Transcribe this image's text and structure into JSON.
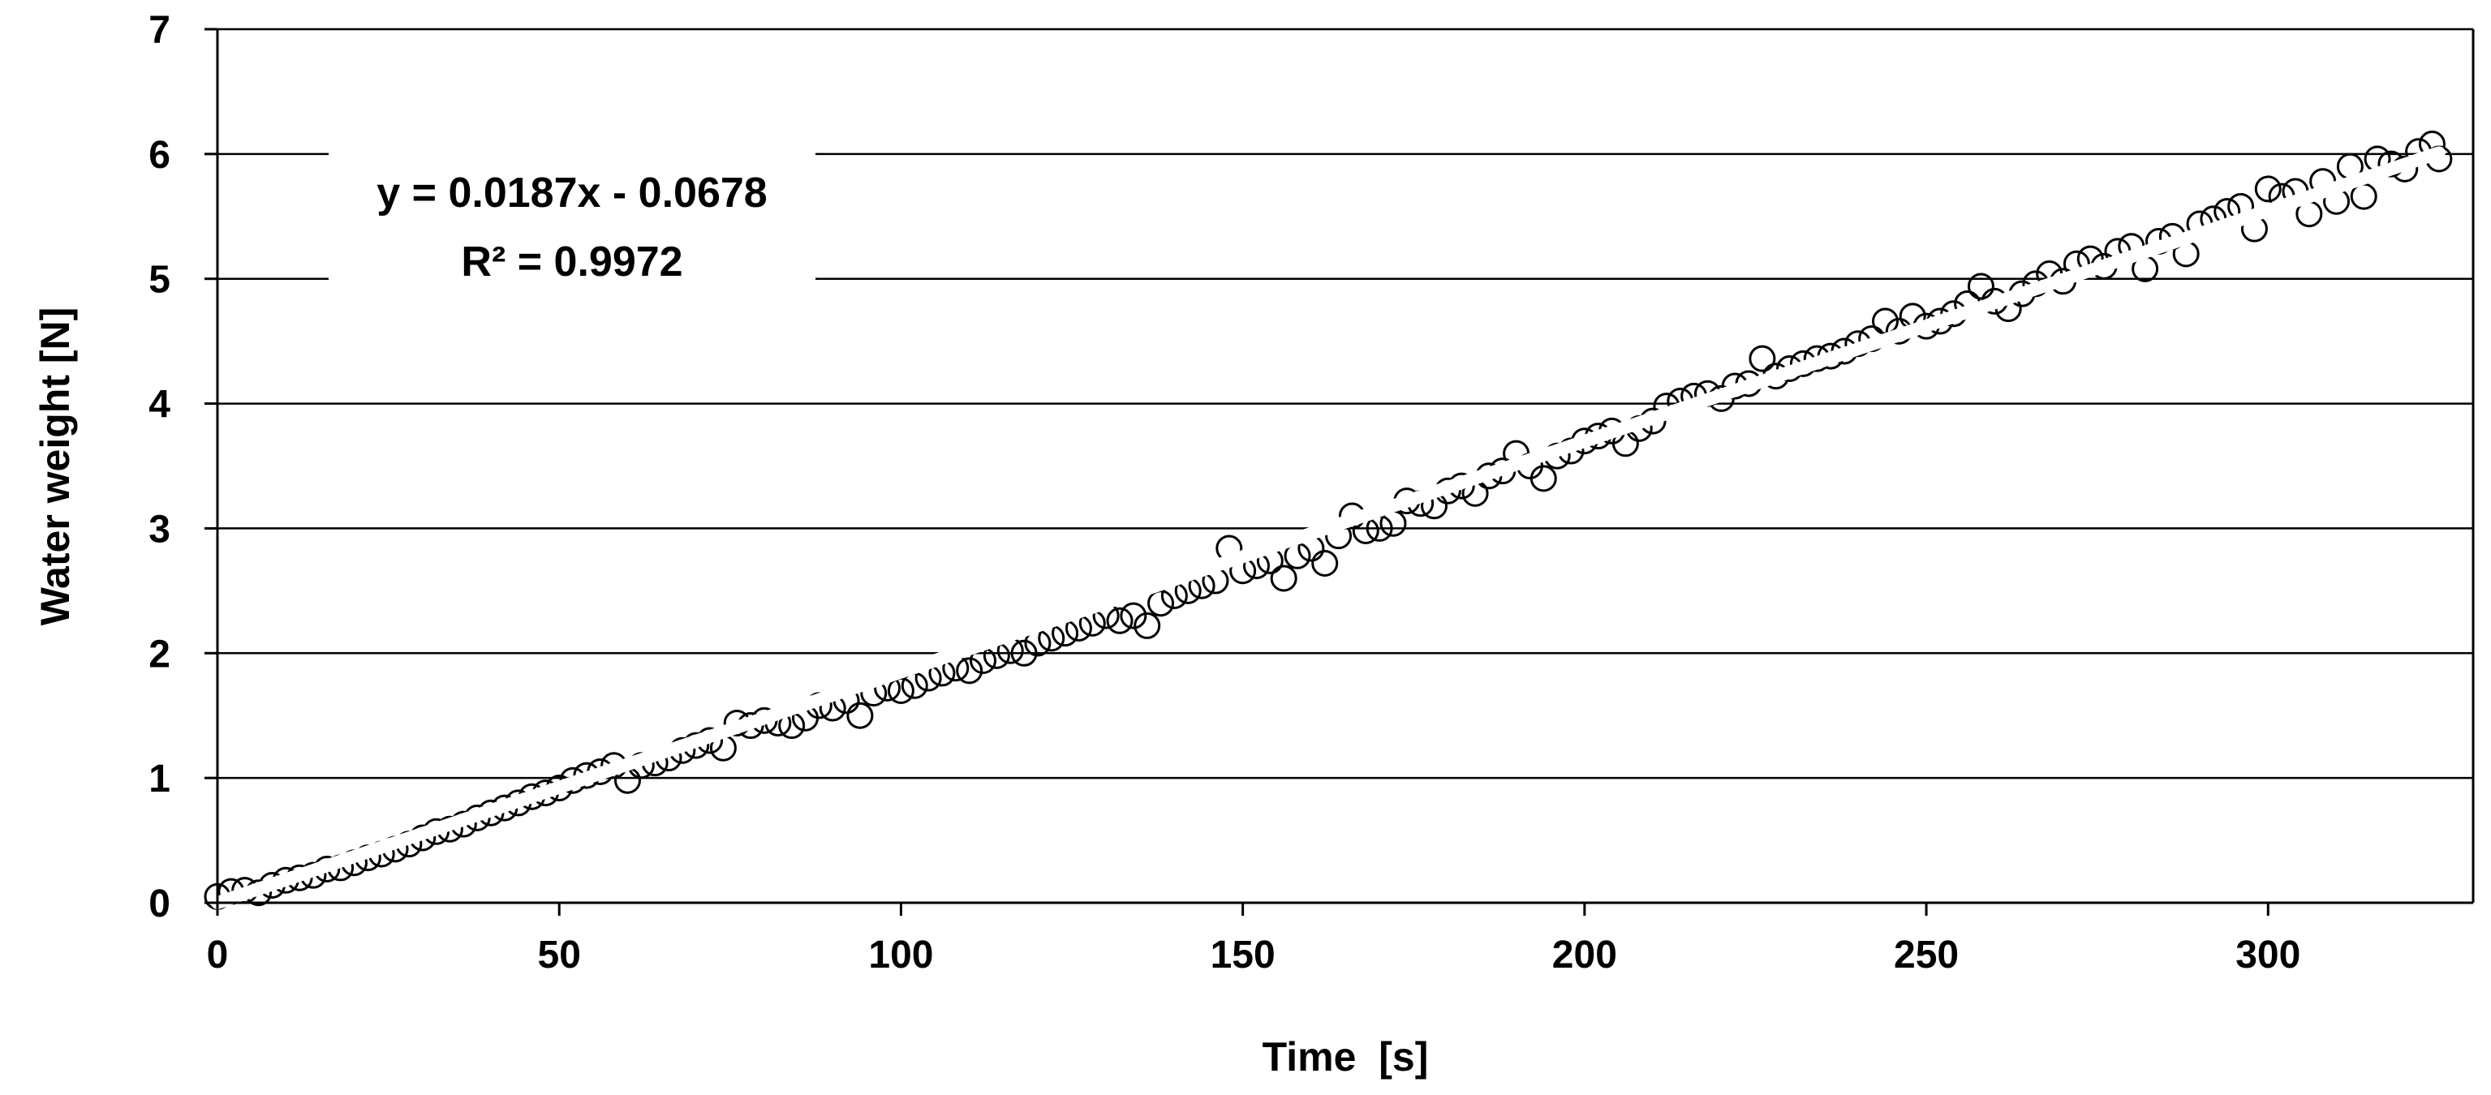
{
  "chart_data": {
    "type": "scatter",
    "title": "",
    "xlabel": "Time  [s]",
    "ylabel": "Water weight [N]",
    "xlim": [
      0,
      330
    ],
    "ylim": [
      0,
      7
    ],
    "xticks": [
      "0",
      "50",
      "100",
      "150",
      "200",
      "250",
      "300"
    ],
    "yticks": [
      "0",
      "1",
      "2",
      "3",
      "4",
      "5",
      "6",
      "7"
    ],
    "grid": "horizontal",
    "legend": "none",
    "marker": "open-circle",
    "trendline": {
      "type": "linear",
      "slope": 0.0187,
      "intercept": -0.0678,
      "x_range": [
        0,
        325
      ],
      "color": "#ffffff"
    },
    "annotations": [
      "y = 0.0187x - 0.0678",
      "R² = 0.9972"
    ],
    "series": [
      {
        "points": [
          [
            0,
            0.05
          ],
          [
            2,
            0.09
          ],
          [
            4,
            0.1
          ],
          [
            6,
            0.08
          ],
          [
            8,
            0.14
          ],
          [
            10,
            0.18
          ],
          [
            12,
            0.2
          ],
          [
            14,
            0.22
          ],
          [
            16,
            0.27
          ],
          [
            18,
            0.28
          ],
          [
            20,
            0.32
          ],
          [
            22,
            0.36
          ],
          [
            24,
            0.39
          ],
          [
            26,
            0.43
          ],
          [
            28,
            0.47
          ],
          [
            30,
            0.52
          ],
          [
            32,
            0.57
          ],
          [
            34,
            0.59
          ],
          [
            36,
            0.63
          ],
          [
            38,
            0.68
          ],
          [
            40,
            0.72
          ],
          [
            42,
            0.76
          ],
          [
            44,
            0.8
          ],
          [
            46,
            0.85
          ],
          [
            48,
            0.88
          ],
          [
            50,
            0.92
          ],
          [
            52,
            0.98
          ],
          [
            54,
            1.02
          ],
          [
            56,
            1.05
          ],
          [
            58,
            1.1
          ],
          [
            60,
            0.98
          ],
          [
            62,
            1.1
          ],
          [
            64,
            1.12
          ],
          [
            66,
            1.16
          ],
          [
            68,
            1.22
          ],
          [
            70,
            1.26
          ],
          [
            72,
            1.3
          ],
          [
            74,
            1.24
          ],
          [
            76,
            1.44
          ],
          [
            78,
            1.42
          ],
          [
            80,
            1.46
          ],
          [
            82,
            1.44
          ],
          [
            84,
            1.42
          ],
          [
            86,
            1.48
          ],
          [
            88,
            1.58
          ],
          [
            90,
            1.56
          ],
          [
            92,
            1.62
          ],
          [
            94,
            1.5
          ],
          [
            96,
            1.68
          ],
          [
            98,
            1.72
          ],
          [
            100,
            1.7
          ],
          [
            102,
            1.74
          ],
          [
            104,
            1.8
          ],
          [
            106,
            1.84
          ],
          [
            108,
            1.88
          ],
          [
            110,
            1.86
          ],
          [
            112,
            1.94
          ],
          [
            114,
            1.98
          ],
          [
            116,
            2.02
          ],
          [
            118,
            2.0
          ],
          [
            120,
            2.08
          ],
          [
            122,
            2.12
          ],
          [
            124,
            2.16
          ],
          [
            126,
            2.2
          ],
          [
            128,
            2.24
          ],
          [
            130,
            2.3
          ],
          [
            132,
            2.26
          ],
          [
            134,
            2.3
          ],
          [
            136,
            2.22
          ],
          [
            138,
            2.4
          ],
          [
            140,
            2.46
          ],
          [
            142,
            2.5
          ],
          [
            144,
            2.54
          ],
          [
            146,
            2.58
          ],
          [
            148,
            2.84
          ],
          [
            150,
            2.66
          ],
          [
            152,
            2.7
          ],
          [
            154,
            2.74
          ],
          [
            156,
            2.6
          ],
          [
            158,
            2.78
          ],
          [
            160,
            2.84
          ],
          [
            162,
            2.72
          ],
          [
            164,
            2.94
          ],
          [
            166,
            3.1
          ],
          [
            168,
            2.98
          ],
          [
            170,
            3.0
          ],
          [
            172,
            3.04
          ],
          [
            174,
            3.22
          ],
          [
            176,
            3.2
          ],
          [
            178,
            3.18
          ],
          [
            180,
            3.3
          ],
          [
            182,
            3.34
          ],
          [
            184,
            3.28
          ],
          [
            186,
            3.42
          ],
          [
            188,
            3.46
          ],
          [
            190,
            3.6
          ],
          [
            192,
            3.5
          ],
          [
            194,
            3.4
          ],
          [
            196,
            3.58
          ],
          [
            198,
            3.62
          ],
          [
            200,
            3.7
          ],
          [
            202,
            3.74
          ],
          [
            204,
            3.78
          ],
          [
            206,
            3.68
          ],
          [
            208,
            3.8
          ],
          [
            210,
            3.86
          ],
          [
            212,
            3.98
          ],
          [
            214,
            4.02
          ],
          [
            216,
            4.06
          ],
          [
            218,
            4.08
          ],
          [
            220,
            4.04
          ],
          [
            222,
            4.14
          ],
          [
            224,
            4.16
          ],
          [
            226,
            4.36
          ],
          [
            228,
            4.22
          ],
          [
            230,
            4.28
          ],
          [
            232,
            4.32
          ],
          [
            234,
            4.36
          ],
          [
            236,
            4.38
          ],
          [
            238,
            4.42
          ],
          [
            240,
            4.48
          ],
          [
            242,
            4.52
          ],
          [
            244,
            4.66
          ],
          [
            246,
            4.58
          ],
          [
            248,
            4.7
          ],
          [
            250,
            4.62
          ],
          [
            252,
            4.66
          ],
          [
            254,
            4.72
          ],
          [
            256,
            4.8
          ],
          [
            258,
            4.94
          ],
          [
            260,
            4.82
          ],
          [
            262,
            4.76
          ],
          [
            264,
            4.88
          ],
          [
            266,
            4.96
          ],
          [
            268,
            5.04
          ],
          [
            270,
            4.98
          ],
          [
            272,
            5.12
          ],
          [
            274,
            5.16
          ],
          [
            276,
            5.1
          ],
          [
            278,
            5.22
          ],
          [
            280,
            5.26
          ],
          [
            282,
            5.08
          ],
          [
            284,
            5.3
          ],
          [
            286,
            5.34
          ],
          [
            288,
            5.2
          ],
          [
            290,
            5.44
          ],
          [
            292,
            5.48
          ],
          [
            294,
            5.54
          ],
          [
            296,
            5.58
          ],
          [
            298,
            5.4
          ],
          [
            300,
            5.72
          ],
          [
            302,
            5.66
          ],
          [
            304,
            5.7
          ],
          [
            306,
            5.52
          ],
          [
            308,
            5.78
          ],
          [
            310,
            5.62
          ],
          [
            312,
            5.9
          ],
          [
            314,
            5.66
          ],
          [
            316,
            5.96
          ],
          [
            318,
            5.92
          ],
          [
            320,
            5.88
          ],
          [
            322,
            6.02
          ],
          [
            324,
            6.08
          ],
          [
            325,
            5.96
          ]
        ]
      }
    ]
  }
}
